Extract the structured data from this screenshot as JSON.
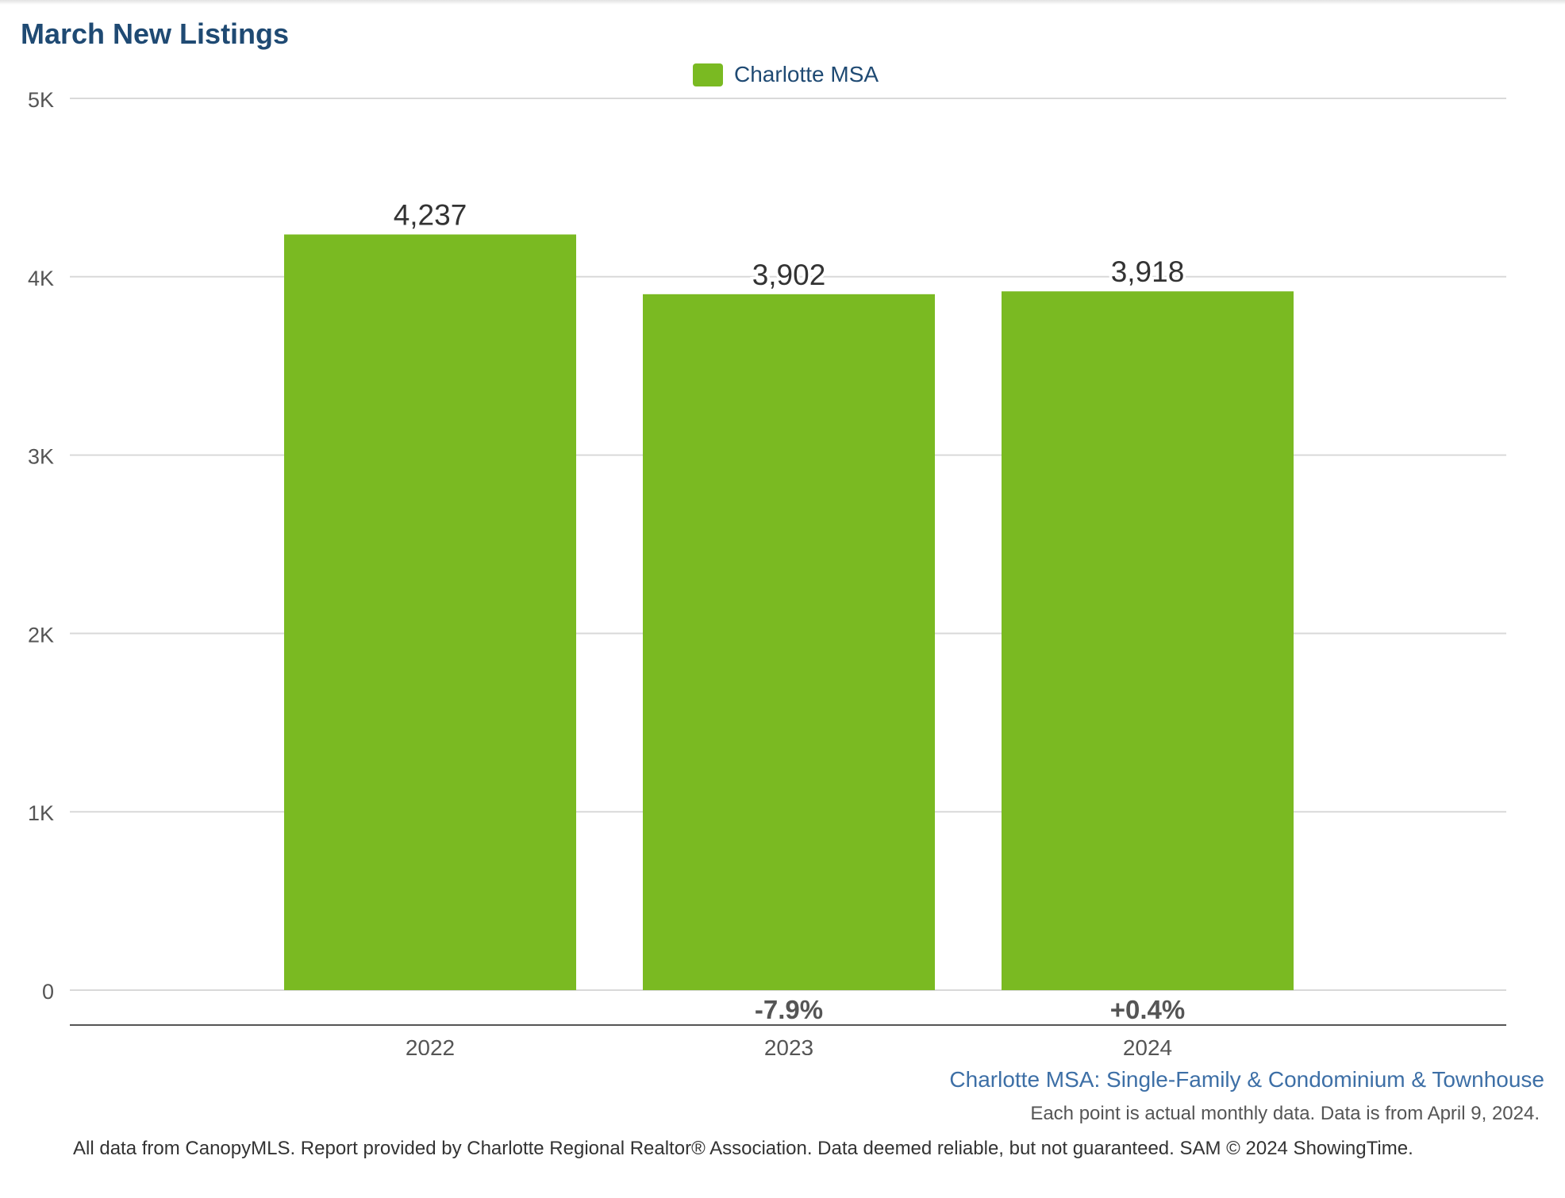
{
  "chart_data": {
    "type": "bar",
    "title": "March New Listings",
    "categories": [
      "2022",
      "2023",
      "2024"
    ],
    "series": [
      {
        "name": "Charlotte MSA",
        "values": [
          4237,
          3902,
          3918
        ],
        "color": "#7aba22"
      }
    ],
    "data_labels": [
      "4,237",
      "3,902",
      "3,918"
    ],
    "change_labels": [
      "",
      "-7.9%",
      "+0.4%"
    ],
    "yticks": [
      0,
      1000,
      2000,
      3000,
      4000,
      5000
    ],
    "ytick_labels": [
      "0",
      "1K",
      "2K",
      "3K",
      "4K",
      "5K"
    ],
    "ylim": [
      0,
      5000
    ],
    "grid": true,
    "legend_position": "top-center",
    "xlabel": "",
    "ylabel": ""
  },
  "legend": {
    "label": "Charlotte MSA",
    "color": "#7aba22"
  },
  "footer": {
    "subtitle": "Charlotte MSA: Single-Family & Condominium & Townhouse",
    "note": "Each point is actual monthly data. Data is from April 9, 2024.",
    "credit": "All data from CanopyMLS. Report provided by Charlotte Regional Realtor® Association. Data deemed reliable, but not guaranteed. SAM © 2024 ShowingTime."
  }
}
